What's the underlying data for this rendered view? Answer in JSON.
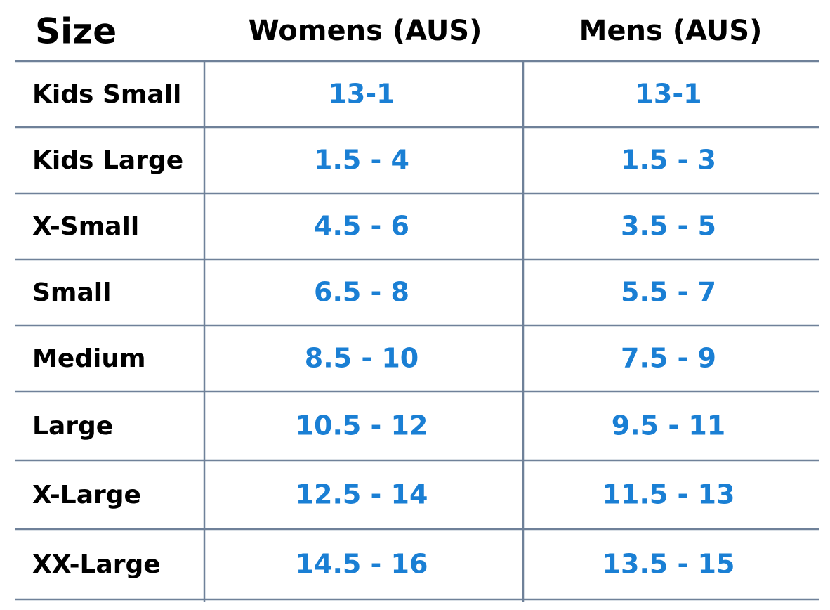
{
  "header": {
    "size": "Size",
    "womens": "Womens (AUS)",
    "mens": "Mens (AUS)"
  },
  "rows": [
    [
      "Kids Small",
      "13-1",
      "13-1"
    ],
    [
      "Kids Large",
      "1.5 - 4",
      "1.5 - 3"
    ],
    [
      "X-Small",
      "4.5 - 6",
      "3.5 - 5"
    ],
    [
      "Small",
      "6.5 - 8",
      "5.5 - 7"
    ],
    [
      "Medium",
      "8.5 - 10",
      "7.5 - 9"
    ],
    [
      "Large",
      "10.5 - 12",
      "9.5 - 11"
    ],
    [
      "X-Large",
      "12.5 - 14",
      "11.5 - 13"
    ],
    [
      "XX-Large",
      "14.5 - 16",
      "13.5 - 15"
    ]
  ]
}
